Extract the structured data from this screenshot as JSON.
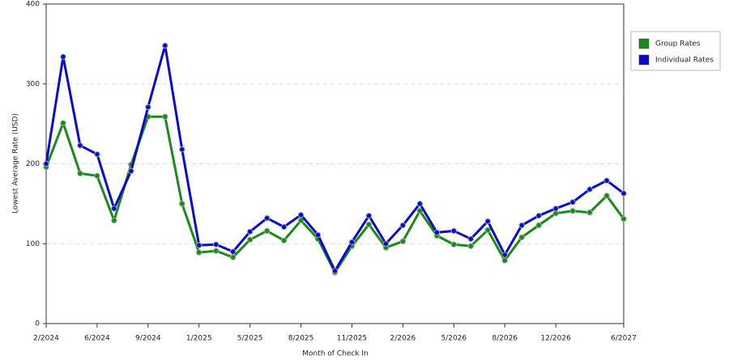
{
  "chart_data": {
    "type": "line",
    "x_label": "Month of Check In",
    "y_label": "Lowest Average Rate (USD)",
    "categories": [
      "2/2024",
      null,
      null,
      "6/2024",
      null,
      null,
      "9/2024",
      null,
      null,
      "1/2025",
      null,
      null,
      "5/2025",
      null,
      null,
      "8/2025",
      null,
      null,
      "11/2025",
      null,
      null,
      "2/2026",
      null,
      null,
      "5/2026",
      null,
      null,
      "8/2026",
      null,
      null,
      "12/2026",
      null,
      null,
      null,
      "6/2027"
    ],
    "series": [
      {
        "name": "Group Rates",
        "color": "#1a8a1a",
        "values": [
          196,
          251,
          188,
          185,
          129,
          199,
          259,
          259,
          150,
          89,
          91,
          83,
          105,
          116,
          104,
          129,
          106,
          64,
          97,
          124,
          95,
          103,
          141,
          110,
          99,
          97,
          117,
          79,
          108,
          123,
          138,
          141,
          139,
          160,
          131
        ]
      },
      {
        "name": "Individual Rates",
        "color": "#0a0acc",
        "values": [
          200,
          334,
          223,
          212,
          144,
          191,
          271,
          348,
          218,
          98,
          99,
          90,
          115,
          132,
          121,
          136,
          111,
          66,
          102,
          135,
          100,
          123,
          150,
          114,
          116,
          106,
          128,
          86,
          123,
          135,
          144,
          152,
          168,
          179,
          163
        ]
      }
    ],
    "ylim": [
      0,
      400
    ],
    "yticks": [
      0,
      100,
      200,
      300,
      400
    ],
    "grid": true,
    "legend": "right"
  }
}
